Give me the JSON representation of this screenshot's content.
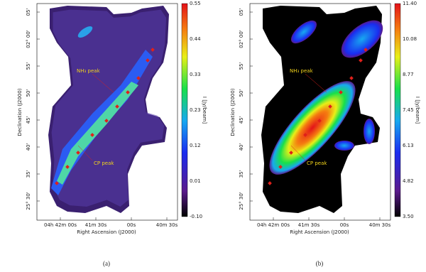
{
  "panels": [
    {
      "label": "(a)",
      "x_axis_label": "Right Ascension (J2000)",
      "y_axis_label": "Declination (J2000)",
      "colorbar_label": "I [Jy/beam]",
      "colorbar_ticks": [
        "0.55",
        "0.44",
        "0.33",
        "0.23",
        "0.12",
        "0.01",
        "-0.10"
      ],
      "x_ticks": [
        "04h 42m 00s",
        "41m 30s",
        "00s",
        "40m 30s"
      ],
      "y_ticks": [
        "05'",
        "02° 00'",
        "55'",
        "50'",
        "45'",
        "40'",
        "35'",
        "25° 30'"
      ],
      "annotations": [
        "NH₃ peak",
        "CP peak"
      ]
    },
    {
      "label": "(b)",
      "x_axis_label": "Right Ascension (J2000)",
      "y_axis_label": "Declination (J2000)",
      "colorbar_label": "I [Jy/beam]",
      "colorbar_ticks": [
        "11.40",
        "10.08",
        "8.77",
        "7.45",
        "6.13",
        "4.82",
        "3.50"
      ],
      "x_ticks": [
        "04h 42m 00s",
        "41m 30s",
        "00s",
        "40m 30s"
      ],
      "y_ticks": [
        "05'",
        "02° 00'",
        "55'",
        "50'",
        "45'",
        "40'",
        "35'",
        "25° 30'"
      ],
      "annotations": [
        "NH₃ peak",
        "CP peak"
      ]
    }
  ]
}
